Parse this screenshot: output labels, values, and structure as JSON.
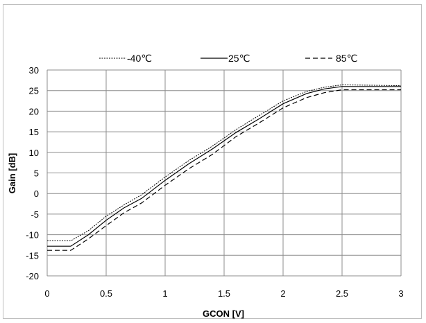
{
  "chart_data": {
    "type": "line",
    "title": "",
    "xlabel": "GCON [V]",
    "ylabel": "Gain [dB]",
    "xlim": [
      0,
      3
    ],
    "ylim": [
      -20,
      30
    ],
    "xticks": [
      "0",
      "0.5",
      "1",
      "1.5",
      "2",
      "2.5",
      "3"
    ],
    "yticks": [
      "30",
      "25",
      "20",
      "15",
      "10",
      "5",
      "0",
      "-5",
      "-10",
      "-15",
      "-20"
    ],
    "grid": true,
    "legend_position": "top",
    "series": [
      {
        "name": "-40℃",
        "style": "dotted",
        "x": [
          0,
          0.2,
          0.35,
          0.5,
          0.65,
          0.8,
          1.0,
          1.2,
          1.4,
          1.6,
          1.8,
          2.0,
          2.2,
          2.35,
          2.5,
          3.0
        ],
        "y": [
          -11.5,
          -11.5,
          -9,
          -5.5,
          -2.8,
          -0.3,
          4,
          8,
          11.5,
          15.5,
          19,
          22.5,
          24.8,
          25.8,
          26.4,
          26.2
        ]
      },
      {
        "name": "25℃",
        "style": "solid",
        "x": [
          0,
          0.2,
          0.35,
          0.5,
          0.65,
          0.8,
          1.0,
          1.2,
          1.4,
          1.6,
          1.8,
          2.0,
          2.2,
          2.35,
          2.5,
          3.0
        ],
        "y": [
          -12.8,
          -12.8,
          -10,
          -6.5,
          -3.5,
          -1.2,
          3.2,
          7.2,
          10.8,
          14.8,
          18.2,
          21.8,
          24.3,
          25.4,
          26.0,
          26.0
        ]
      },
      {
        "name": "85℃",
        "style": "dashed",
        "x": [
          0,
          0.2,
          0.35,
          0.5,
          0.65,
          0.8,
          1.0,
          1.2,
          1.4,
          1.6,
          1.8,
          2.0,
          2.2,
          2.35,
          2.5,
          3.0
        ],
        "y": [
          -13.8,
          -13.8,
          -11,
          -7.8,
          -4.7,
          -2.3,
          2,
          6,
          9.5,
          13.8,
          17.2,
          20.8,
          23.3,
          24.5,
          25.2,
          25.2
        ]
      }
    ]
  }
}
